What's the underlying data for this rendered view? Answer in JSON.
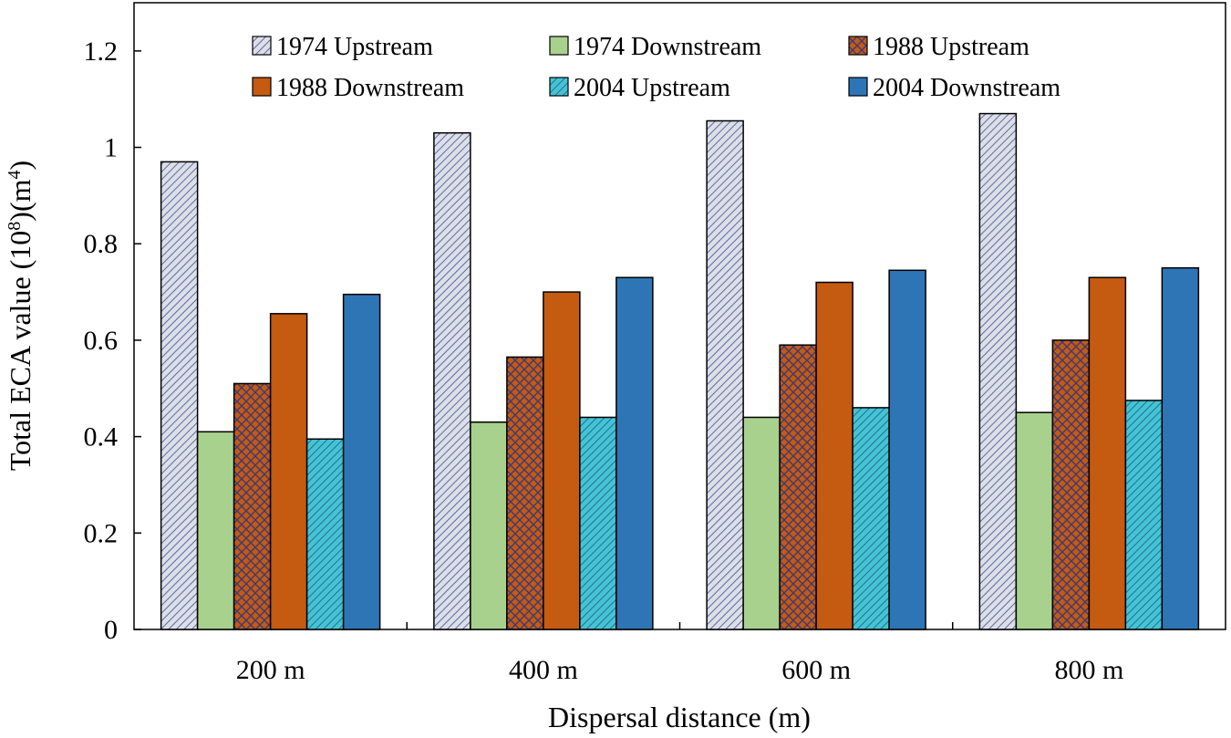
{
  "chart_data": {
    "type": "bar",
    "title": "",
    "xlabel": "Dispersal distance (m)",
    "ylabel": {
      "main": "Total ECA value (10",
      "sup1": "8",
      "mid": ")(m",
      "sup2": "4",
      "end": ")"
    },
    "categories": [
      "200 m",
      "400 m",
      "600 m",
      "800 m"
    ],
    "ylim": [
      0,
      1.3
    ],
    "yticks": [
      0,
      0.2,
      0.4,
      0.6,
      0.8,
      1,
      1.2
    ],
    "ytick_labels": [
      "0",
      "0.2",
      "0.4",
      "0.6",
      "0.8",
      "1",
      "1.2"
    ],
    "grid": false,
    "legend_position": "top",
    "series": [
      {
        "name": "1974 Upstream",
        "values": [
          0.97,
          1.03,
          1.055,
          1.07
        ],
        "color": "#d3d8e6",
        "pattern": "diag-stripe"
      },
      {
        "name": "1974 Downstream",
        "values": [
          0.41,
          0.43,
          0.44,
          0.45
        ],
        "color": "#a9d18e",
        "pattern": "solid"
      },
      {
        "name": "1988 Upstream",
        "values": [
          0.51,
          0.565,
          0.59,
          0.6
        ],
        "color": "#c55a11",
        "pattern": "crosshatch"
      },
      {
        "name": "1988 Downstream",
        "values": [
          0.655,
          0.7,
          0.72,
          0.73
        ],
        "color": "#c55a11",
        "pattern": "solid"
      },
      {
        "name": "2004 Upstream",
        "values": [
          0.395,
          0.44,
          0.46,
          0.475
        ],
        "color": "#4bc2cf",
        "pattern": "diag-stripe"
      },
      {
        "name": "2004 Downstream",
        "values": [
          0.695,
          0.73,
          0.745,
          0.75
        ],
        "color": "#2e75b6",
        "pattern": "solid"
      }
    ]
  }
}
